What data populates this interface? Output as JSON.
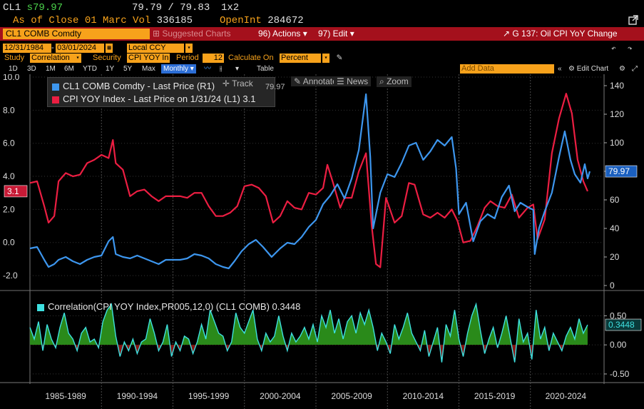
{
  "header": {
    "ticker": "CL1",
    "last_prefix": "s",
    "last_price": "79.97",
    "bid_ask": "79.79 / 79.83",
    "size": "1x2",
    "as_of_label": "As of Close",
    "as_of_date": "01 Marc",
    "vol_label": "Vol",
    "vol_value": "336185",
    "oi_label": "OpenInt",
    "oi_value": "284672"
  },
  "toolbar": {
    "security": "CL1 COMB Comdty",
    "suggested": "Suggested Charts",
    "actions": "96) Actions",
    "edit": "97) Edit",
    "chart_title": "G 137: Oil CPI YoY Change"
  },
  "params": {
    "start_date": "12/31/1984",
    "end_date": "03/01/2024",
    "currency": "Local CCY",
    "study_label": "Study",
    "study_value": "Correlation",
    "security_label": "Security",
    "security_value": "CPI YOY In",
    "period_label": "Period",
    "period_value": "12",
    "calc_label": "Calculate On",
    "calc_value": "Percent"
  },
  "range": {
    "buttons": [
      "1D",
      "3D",
      "1M",
      "6M",
      "YTD",
      "1Y",
      "5Y",
      "Max"
    ],
    "frequency": "Monthly",
    "table": "Table",
    "add_data": "Add Data",
    "edit_chart": "Edit Chart"
  },
  "chart_tools": {
    "track": "Track",
    "annotate": "Annotate",
    "news": "News",
    "zoom": "Zoom",
    "track_value": "79.97"
  },
  "colors": {
    "oil": "#3d96ee",
    "cpi": "#ec1e42",
    "corr_fill": "#2a8a1a",
    "corr_neg": "#8a1414",
    "corr_line": "#3ee0e0",
    "bloomberg_orange": "#f7a21b",
    "toolbar_red": "#a4101c"
  },
  "legend": {
    "oil": "CL1 COMB Comdty - Last Price (R1)",
    "cpi": "CPI YOY Index - Last Price on 1/31/24 (L1) 3.1",
    "corr": "Correlation(CPI YOY Index,PR005,12,0) (CL1 COMB) 0.3448"
  },
  "chart_data": [
    {
      "type": "line",
      "x_ticks": [
        "1985-1989",
        "1990-1994",
        "1995-1999",
        "2000-2004",
        "2005-2009",
        "2010-2014",
        "2015-2019",
        "2020-2024"
      ],
      "y_left": {
        "ticks": [
          "10.0",
          "8.0",
          "6.0",
          "4.0",
          "2.0",
          "0.0",
          "-2.0"
        ],
        "ylim": [
          -2.6,
          10.0
        ],
        "current": "3.1"
      },
      "y_right": {
        "ticks": [
          "140",
          "120",
          "100",
          "80",
          "60",
          "40",
          "20",
          "0"
        ],
        "ylim": [
          0,
          146
        ],
        "current": "79.97"
      },
      "series": [
        {
          "name": "CL1 COMB Comdty - Last Price (R1)",
          "axis": "right",
          "x": [
            1985.0,
            1985.5,
            1986.0,
            1986.3,
            1986.7,
            1987.0,
            1987.5,
            1988.0,
            1988.5,
            1989.0,
            1989.5,
            1990.0,
            1990.5,
            1990.8,
            1991.0,
            1991.5,
            1992.0,
            1992.5,
            1993.0,
            1993.5,
            1994.0,
            1994.5,
            1995.0,
            1995.5,
            1996.0,
            1996.5,
            1997.0,
            1997.5,
            1998.0,
            1998.5,
            1998.9,
            1999.3,
            1999.8,
            2000.3,
            2000.8,
            2001.3,
            2001.9,
            2002.5,
            2003.0,
            2003.5,
            2004.0,
            2004.5,
            2005.0,
            2005.5,
            2006.0,
            2006.5,
            2007.0,
            2007.5,
            2008.0,
            2008.5,
            2008.8,
            2009.0,
            2009.5,
            2010.0,
            2010.5,
            2011.0,
            2011.5,
            2012.0,
            2012.5,
            2013.0,
            2013.5,
            2014.0,
            2014.5,
            2014.8,
            2015.0,
            2015.5,
            2016.0,
            2016.5,
            2017.0,
            2017.5,
            2018.0,
            2018.5,
            2018.9,
            2019.3,
            2019.8,
            2020.2,
            2020.3,
            2020.6,
            2021.0,
            2021.5,
            2022.0,
            2022.4,
            2022.8,
            2023.1,
            2023.5,
            2023.8,
            2024.0,
            2024.15
          ],
          "values": [
            26,
            27,
            18,
            13,
            15,
            18,
            20,
            17,
            15,
            18,
            20,
            21,
            31,
            34,
            22,
            20,
            19,
            21,
            19,
            17,
            15,
            18,
            18,
            18,
            19,
            22,
            21,
            19,
            15,
            13,
            12,
            17,
            24,
            29,
            32,
            27,
            20,
            26,
            30,
            29,
            34,
            41,
            46,
            57,
            63,
            71,
            61,
            75,
            95,
            134,
            90,
            40,
            65,
            78,
            76,
            86,
            98,
            100,
            88,
            94,
            102,
            98,
            104,
            82,
            50,
            58,
            31,
            45,
            50,
            47,
            62,
            70,
            52,
            58,
            55,
            53,
            22,
            40,
            52,
            65,
            90,
            108,
            88,
            78,
            72,
            85,
            75,
            79.97
          ]
        },
        {
          "name": "CPI YOY Index - Last Price on 1/31/24 (L1) 3.1",
          "axis": "left",
          "x": [
            1985.0,
            1985.5,
            1986.0,
            1986.3,
            1986.7,
            1987.0,
            1987.5,
            1988.0,
            1988.5,
            1989.0,
            1989.5,
            1990.0,
            1990.5,
            1990.8,
            1991.0,
            1991.5,
            1992.0,
            1992.5,
            1993.0,
            1993.5,
            1994.0,
            1994.5,
            1995.0,
            1995.5,
            1996.0,
            1996.5,
            1997.0,
            1997.5,
            1998.0,
            1998.5,
            1999.0,
            1999.5,
            2000.0,
            2000.5,
            2001.0,
            2001.5,
            2002.0,
            2002.5,
            2003.0,
            2003.5,
            2004.0,
            2004.5,
            2005.0,
            2005.5,
            2005.8,
            2006.2,
            2006.7,
            2007.0,
            2007.5,
            2008.0,
            2008.5,
            2008.9,
            2009.2,
            2009.5,
            2009.9,
            2010.5,
            2011.0,
            2011.5,
            2011.9,
            2012.5,
            2013.0,
            2013.5,
            2014.0,
            2014.5,
            2014.9,
            2015.3,
            2015.8,
            2016.3,
            2016.8,
            2017.2,
            2017.7,
            2018.2,
            2018.7,
            2019.2,
            2019.8,
            2020.2,
            2020.5,
            2021.0,
            2021.5,
            2022.0,
            2022.5,
            2022.9,
            2023.3,
            2023.7,
            2024.0
          ],
          "values": [
            3.6,
            3.7,
            2.2,
            1.2,
            1.6,
            3.7,
            4.2,
            4.0,
            4.1,
            4.8,
            5.0,
            5.3,
            5.1,
            6.2,
            4.8,
            4.4,
            2.8,
            3.1,
            3.2,
            2.8,
            2.5,
            2.8,
            2.8,
            2.8,
            2.7,
            3.0,
            3.0,
            2.2,
            1.6,
            1.6,
            1.8,
            2.2,
            3.4,
            3.5,
            3.3,
            2.8,
            1.2,
            1.6,
            2.5,
            2.1,
            2.0,
            3.0,
            2.9,
            3.3,
            4.7,
            3.6,
            2.1,
            2.7,
            2.7,
            4.3,
            5.4,
            1.0,
            -1.3,
            -1.5,
            2.7,
            1.2,
            1.6,
            3.6,
            3.5,
            1.7,
            1.5,
            1.8,
            1.5,
            2.0,
            1.3,
            0.0,
            0.1,
            1.0,
            2.1,
            2.5,
            2.2,
            2.1,
            2.9,
            1.5,
            2.1,
            2.3,
            0.2,
            1.4,
            5.4,
            7.5,
            9.0,
            7.8,
            5.0,
            3.7,
            3.1
          ]
        }
      ]
    },
    {
      "type": "area",
      "title": "Correlation(CPI YOY Index,PR005,12,0) (CL1 COMB) 0.3448",
      "y_ticks": [
        "0.50",
        "0.00",
        "-0.50"
      ],
      "ylim": [
        -0.55,
        0.75
      ],
      "current": "0.3448",
      "series": [
        {
          "name": "Correlation(CPI YOY Index,PR005,12,0) (CL1 COMB)",
          "x": [
            1985.0,
            1985.3,
            1985.6,
            1985.9,
            1986.2,
            1986.5,
            1986.8,
            1987.1,
            1987.4,
            1987.7,
            1988.0,
            1988.3,
            1988.6,
            1988.9,
            1989.2,
            1989.5,
            1989.8,
            1990.1,
            1990.4,
            1990.7,
            1991.0,
            1991.3,
            1991.6,
            1991.9,
            1992.2,
            1992.5,
            1992.8,
            1993.1,
            1993.4,
            1993.7,
            1994.0,
            1994.3,
            1994.6,
            1994.9,
            1995.2,
            1995.5,
            1995.8,
            1996.1,
            1996.4,
            1996.7,
            1997.0,
            1997.3,
            1997.6,
            1997.9,
            1998.2,
            1998.5,
            1998.8,
            1999.1,
            1999.4,
            1999.7,
            2000.0,
            2000.3,
            2000.6,
            2000.9,
            2001.2,
            2001.5,
            2001.8,
            2002.1,
            2002.4,
            2002.7,
            2003.0,
            2003.3,
            2003.6,
            2003.9,
            2004.2,
            2004.5,
            2004.8,
            2005.1,
            2005.4,
            2005.7,
            2006.0,
            2006.3,
            2006.6,
            2006.9,
            2007.2,
            2007.5,
            2007.8,
            2008.1,
            2008.4,
            2008.7,
            2009.0,
            2009.3,
            2009.6,
            2009.9,
            2010.2,
            2010.5,
            2010.8,
            2011.1,
            2011.4,
            2011.7,
            2012.0,
            2012.3,
            2012.6,
            2012.9,
            2013.2,
            2013.5,
            2013.8,
            2014.1,
            2014.4,
            2014.7,
            2015.0,
            2015.3,
            2015.6,
            2015.9,
            2016.2,
            2016.5,
            2016.8,
            2017.1,
            2017.4,
            2017.7,
            2018.0,
            2018.3,
            2018.6,
            2018.9,
            2019.2,
            2019.5,
            2019.8,
            2020.1,
            2020.4,
            2020.7,
            2021.0,
            2021.3,
            2021.6,
            2021.9,
            2022.2,
            2022.5,
            2022.8,
            2023.1,
            2023.4,
            2023.7,
            2024.0
          ],
          "values": [
            0.3,
            0.1,
            0.4,
            -0.1,
            0.35,
            0.1,
            -0.05,
            0.3,
            0.55,
            0.2,
            0.1,
            -0.1,
            0.2,
            0.3,
            0.05,
            0.1,
            -0.05,
            0.4,
            0.6,
            0.7,
            0.15,
            -0.2,
            0.05,
            -0.1,
            0.1,
            -0.15,
            0.05,
            0.1,
            0.45,
            0.2,
            -0.1,
            0.05,
            0.35,
            -0.2,
            0.05,
            -0.1,
            0.15,
            0.1,
            -0.15,
            0.05,
            0.35,
            0.1,
            0.6,
            0.4,
            0.2,
            0.15,
            -0.1,
            0.05,
            0.55,
            0.3,
            0.2,
            0.4,
            0.6,
            0.1,
            -0.1,
            0.2,
            0.05,
            0.15,
            0.5,
            0.15,
            -0.1,
            0.2,
            0.05,
            0.15,
            0.3,
            0.1,
            0.35,
            0.05,
            0.5,
            0.3,
            0.6,
            0.2,
            0.45,
            0.1,
            0.4,
            0.5,
            0.2,
            0.55,
            0.35,
            0.6,
            0.3,
            -0.1,
            0.2,
            0.05,
            -0.15,
            0.35,
            0.1,
            0.3,
            0.55,
            0.2,
            0.05,
            -0.1,
            0.25,
            -0.2,
            0.05,
            0.3,
            -0.3,
            0.35,
            0.15,
            0.6,
            0.1,
            -0.2,
            0.2,
            0.5,
            0.7,
            0.25,
            -0.15,
            0.1,
            0.3,
            -0.05,
            0.2,
            0.5,
            0.1,
            -0.3,
            0.45,
            0.05,
            0.2,
            -0.25,
            0.6,
            0.1,
            0.3,
            -0.1,
            0.2,
            0.05,
            -0.1,
            0.15,
            0.3,
            0.1,
            0.45,
            0.2,
            0.3448
          ]
        }
      ]
    }
  ]
}
